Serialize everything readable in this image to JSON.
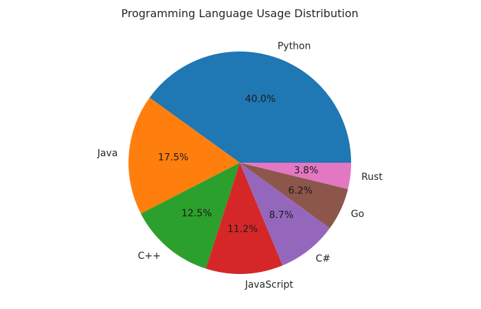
{
  "chart_data": {
    "type": "pie",
    "title": "Programming Language Usage Distribution",
    "categories": [
      "Python",
      "Java",
      "C++",
      "JavaScript",
      "C#",
      "Go",
      "Rust"
    ],
    "values": [
      40.0,
      17.5,
      12.5,
      11.2,
      8.7,
      6.2,
      3.8
    ],
    "value_labels": [
      "40.0%",
      "17.5%",
      "12.5%",
      "11.2%",
      "8.7%",
      "6.2%",
      "3.8%"
    ],
    "colors": [
      "#1f77b4",
      "#ff7f0e",
      "#2ca02c",
      "#d62728",
      "#9467bd",
      "#8c564b",
      "#e377c2"
    ],
    "start_angle": 0,
    "direction": "counterclockwise",
    "legend": false,
    "xlabel": "",
    "ylabel": ""
  }
}
